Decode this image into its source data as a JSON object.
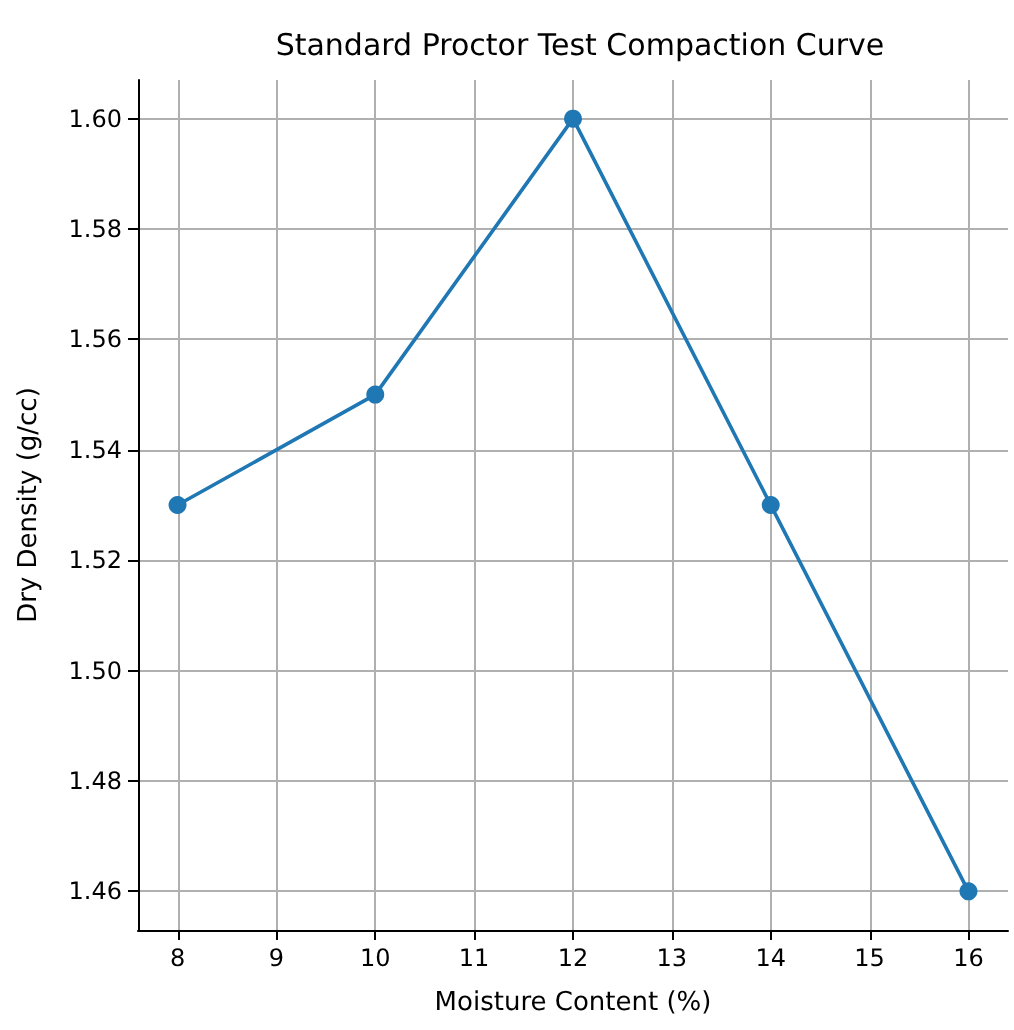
{
  "chart_data": {
    "type": "line",
    "title": "Standard Proctor Test Compaction Curve",
    "xlabel": "Moisture Content (%)",
    "ylabel": "Dry Density (g/cc)",
    "x": [
      8,
      10,
      12,
      14,
      16
    ],
    "series": [
      {
        "color": "#1f77b4",
        "values": [
          1.53,
          1.55,
          1.6,
          1.53,
          1.46
        ]
      }
    ],
    "xlim": [
      7.6,
      16.4
    ],
    "xticks": [
      8,
      9,
      10,
      11,
      12,
      13,
      14,
      15,
      16
    ],
    "ylim": [
      1.453,
      1.607
    ],
    "yticks": [
      1.46,
      1.48,
      {
        "value": 1.5,
        "label": "1.50"
      },
      1.52,
      1.54,
      1.56,
      1.58,
      {
        "value": 1.6,
        "label": "1.60"
      }
    ],
    "grid": true,
    "marker": "circle",
    "line_style": "solid"
  }
}
